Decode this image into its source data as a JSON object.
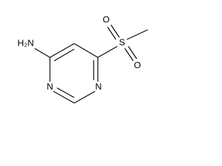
{
  "nodes": [
    {
      "label": "H₂N"
    },
    {
      "label": "N"
    },
    {
      "label": "N"
    },
    {
      "label": "S"
    },
    {
      "label": "O"
    },
    {
      "label": "O"
    }
  ]
}
